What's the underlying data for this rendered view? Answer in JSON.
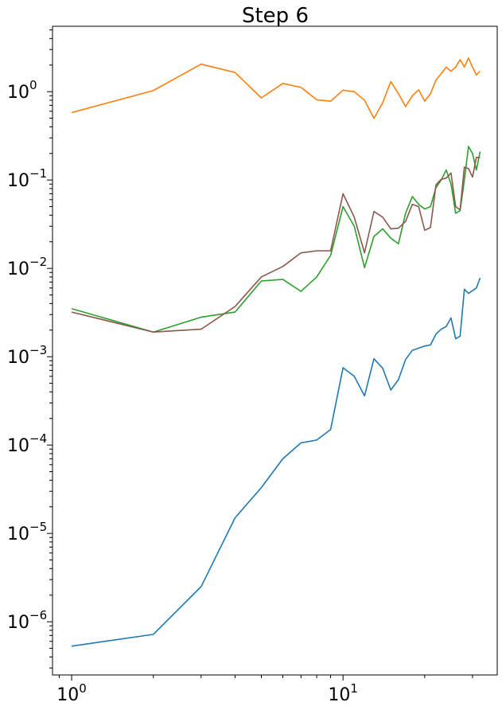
{
  "chart_data": {
    "type": "line",
    "title": "Step 6",
    "xlabel": "",
    "ylabel": "",
    "xscale": "log",
    "yscale": "log",
    "xlim": [
      0.85,
      37
    ],
    "ylim": [
      2.5e-07,
      5.5
    ],
    "grid": false,
    "x_ticks": [
      {
        "value": 1,
        "base": "10",
        "exp": "0"
      },
      {
        "value": 10,
        "base": "10",
        "exp": "1"
      }
    ],
    "y_ticks": [
      {
        "value": 1e-06,
        "base": "10",
        "exp": "−6"
      },
      {
        "value": 1e-05,
        "base": "10",
        "exp": "−5"
      },
      {
        "value": 0.0001,
        "base": "10",
        "exp": "−4"
      },
      {
        "value": 0.001,
        "base": "10",
        "exp": "−3"
      },
      {
        "value": 0.01,
        "base": "10",
        "exp": "−2"
      },
      {
        "value": 0.1,
        "base": "10",
        "exp": "−1"
      },
      {
        "value": 1,
        "base": "10",
        "exp": "0"
      }
    ],
    "x": [
      1,
      2,
      3,
      4,
      5,
      6,
      7,
      8,
      9,
      10,
      11,
      12,
      13,
      14,
      15,
      16,
      17,
      18,
      19,
      20,
      21,
      22,
      23,
      24,
      25,
      26,
      27,
      28,
      29,
      30,
      31,
      32
    ],
    "series": [
      {
        "color": "#1f77b4",
        "values": [
          5.3e-07,
          7.2e-07,
          2.5e-06,
          1.5e-05,
          3.3e-05,
          7e-05,
          0.000106,
          0.000114,
          0.00015,
          0.00075,
          0.0006,
          0.00036,
          0.00095,
          0.00074,
          0.00042,
          0.00055,
          0.00093,
          0.00118,
          0.00125,
          0.00132,
          0.00136,
          0.0018,
          0.00205,
          0.0022,
          0.00275,
          0.0016,
          0.0017,
          0.0058,
          0.0052,
          0.0056,
          0.006,
          0.0078
        ]
      },
      {
        "color": "#ff7f0e",
        "values": [
          0.58,
          1.03,
          2.05,
          1.65,
          0.85,
          1.24,
          1.12,
          0.81,
          0.78,
          1.04,
          1.0,
          0.8,
          0.5,
          0.75,
          1.3,
          0.95,
          0.68,
          0.9,
          1.05,
          0.78,
          0.95,
          1.35,
          1.6,
          1.9,
          1.7,
          1.9,
          2.3,
          1.9,
          2.4,
          1.9,
          1.55,
          1.7
        ]
      },
      {
        "color": "#2ca02c",
        "values": [
          0.0035,
          0.0019,
          0.0028,
          0.0032,
          0.0072,
          0.0075,
          0.0055,
          0.008,
          0.014,
          0.05,
          0.03,
          0.0102,
          0.023,
          0.028,
          0.022,
          0.019,
          0.042,
          0.065,
          0.053,
          0.047,
          0.05,
          0.082,
          0.1,
          0.13,
          0.09,
          0.042,
          0.045,
          0.1,
          0.24,
          0.2,
          0.13,
          0.21
        ]
      },
      {
        "color": "#8c564b",
        "values": [
          0.0032,
          0.0019,
          0.00205,
          0.0037,
          0.008,
          0.0105,
          0.015,
          0.0158,
          0.0158,
          0.07,
          0.038,
          0.015,
          0.044,
          0.038,
          0.028,
          0.0285,
          0.034,
          0.053,
          0.05,
          0.027,
          0.029,
          0.088,
          0.102,
          0.105,
          0.12,
          0.05,
          0.046,
          0.14,
          0.135,
          0.108,
          0.18,
          0.18
        ]
      }
    ]
  }
}
